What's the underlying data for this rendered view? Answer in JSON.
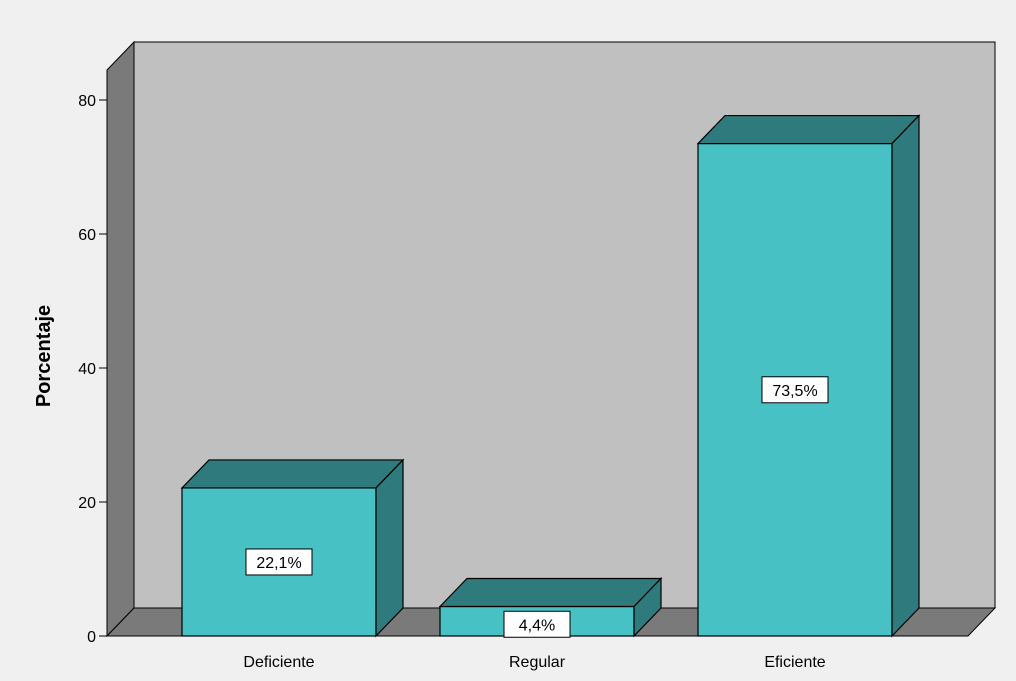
{
  "chart_data": {
    "type": "bar",
    "categories": [
      "Deficiente",
      "Regular",
      "Eficiente"
    ],
    "values": [
      22.1,
      4.4,
      73.5
    ],
    "data_labels": [
      "22,1%",
      "4,4%",
      "73,5%"
    ],
    "title": "",
    "xlabel": "",
    "ylabel": "Porcentaje",
    "ylim": [
      0,
      80
    ],
    "yticks": [
      0,
      20,
      40,
      60,
      80
    ],
    "ytick_labels": [
      "0",
      "20",
      "40",
      "60",
      "80"
    ],
    "grid": false,
    "style": "3d",
    "colors": {
      "bar_front": "#48c1c4",
      "bar_top": "#2e7a7c",
      "bar_side": "#2e7a7c",
      "back_wall": "#c0c0c0",
      "side_wall": "#7a7a7a",
      "floor": "#7a7a7a",
      "background": "#f0f0f0"
    }
  }
}
